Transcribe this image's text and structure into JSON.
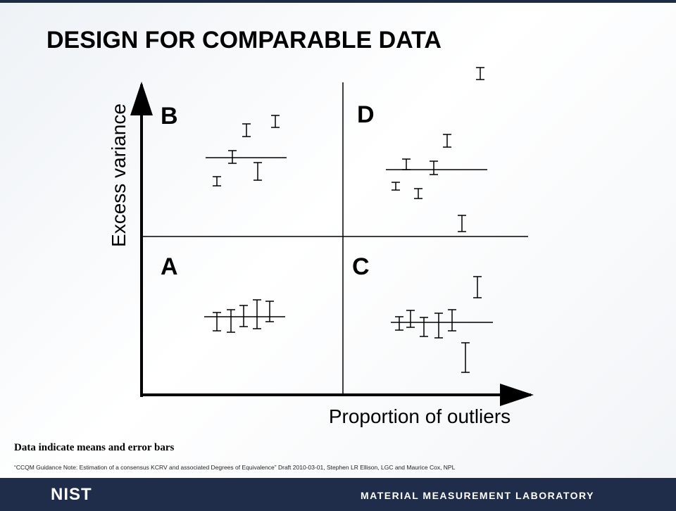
{
  "slide": {
    "title": "DESIGN FOR COMPARABLE DATA",
    "y_axis_label": "Excess variance",
    "x_axis_label": "Proportion of outliers",
    "quadrants": [
      "B",
      "D",
      "A",
      "C"
    ],
    "note": "Data indicate means and error bars",
    "citation": "“CCQM Guidance Note: Estimation of a consensus KCRV and associated Degrees of Equivalence” Draft 2010-03-01, Stephen LR Ellison, LGC and Maurice Cox, NPL",
    "footer": {
      "logo": "NIST",
      "lab": "MATERIAL MEASUREMENT LABORATORY"
    }
  }
}
